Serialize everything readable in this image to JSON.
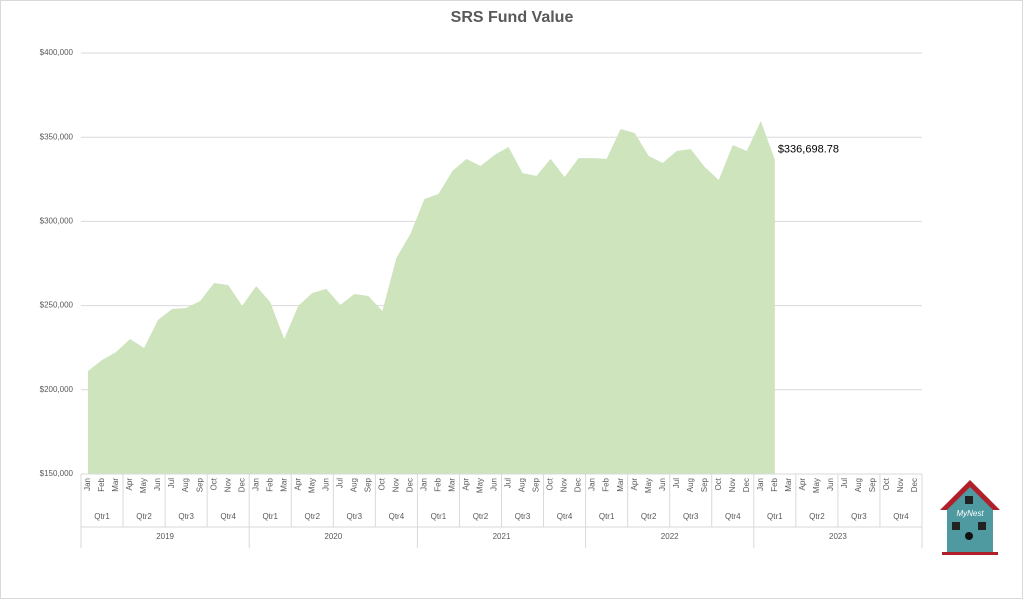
{
  "chart_data": {
    "type": "area",
    "title": "SRS Fund Value",
    "categories": [
      "Jan",
      "Feb",
      "Mar",
      "Apr",
      "May",
      "Jun",
      "Jul",
      "Aug",
      "Sep",
      "Oct",
      "Nov",
      "Dec",
      "Jan",
      "Feb",
      "Mar",
      "Apr",
      "May",
      "Jun",
      "Jul",
      "Aug",
      "Sep",
      "Oct",
      "Nov",
      "Dec",
      "Jan",
      "Feb",
      "Mar",
      "Apr",
      "May",
      "Jun",
      "Jul",
      "Aug",
      "Sep",
      "Oct",
      "Nov",
      "Dec",
      "Jan",
      "Feb",
      "Mar",
      "Apr",
      "May",
      "Jun",
      "Jul",
      "Aug",
      "Sep",
      "Oct",
      "Nov",
      "Dec",
      "Jan",
      "Feb",
      "Mar",
      "Apr",
      "May",
      "Jun",
      "Jul",
      "Aug",
      "Sep",
      "Oct",
      "Nov",
      "Dec"
    ],
    "quarters": [
      "Qtr1",
      "Qtr2",
      "Qtr3",
      "Qtr4",
      "Qtr1",
      "Qtr2",
      "Qtr3",
      "Qtr4",
      "Qtr1",
      "Qtr2",
      "Qtr3",
      "Qtr4",
      "Qtr1",
      "Qtr2",
      "Qtr3",
      "Qtr4",
      "Qtr1",
      "Qtr2",
      "Qtr3",
      "Qtr4"
    ],
    "years": [
      "2019",
      "2020",
      "2021",
      "2022",
      "2023"
    ],
    "values": [
      211200,
      217700,
      222400,
      230200,
      224800,
      241500,
      248000,
      248600,
      252700,
      263400,
      262200,
      249800,
      261600,
      252100,
      230200,
      249800,
      257500,
      259900,
      250400,
      256900,
      255700,
      246800,
      278300,
      292500,
      313300,
      316300,
      329900,
      337100,
      332900,
      339400,
      344200,
      328700,
      327000,
      337100,
      326400,
      337600,
      337600,
      337100,
      354900,
      352500,
      338800,
      334700,
      341800,
      343000,
      332300,
      324600,
      345400,
      341800,
      359600,
      336698.78,
      null,
      null,
      null,
      null,
      null,
      null,
      null,
      null,
      null,
      null
    ],
    "value_labels": [
      null,
      null,
      null,
      null,
      null,
      null,
      null,
      null,
      null,
      null,
      null,
      null,
      null,
      null,
      null,
      null,
      null,
      null,
      null,
      null,
      null,
      null,
      null,
      null,
      null,
      null,
      null,
      null,
      null,
      null,
      null,
      null,
      null,
      null,
      null,
      null,
      null,
      null,
      null,
      null,
      null,
      null,
      null,
      null,
      null,
      null,
      null,
      null,
      null,
      "$336,698.78",
      null,
      null,
      null,
      null,
      null,
      null,
      null,
      null,
      null,
      null
    ],
    "color": "#cde4bd",
    "ylim": [
      150000,
      400000
    ],
    "yticks": [
      {
        "value": 150000,
        "label": "$150,000"
      },
      {
        "value": 200000,
        "label": "$200,000"
      },
      {
        "value": 250000,
        "label": "$250,000"
      },
      {
        "value": 300000,
        "label": "$300,000"
      },
      {
        "value": 350000,
        "label": "$350,000"
      },
      {
        "value": 400000,
        "label": "$400,000"
      }
    ],
    "grid": true
  },
  "logo": "MyNest"
}
